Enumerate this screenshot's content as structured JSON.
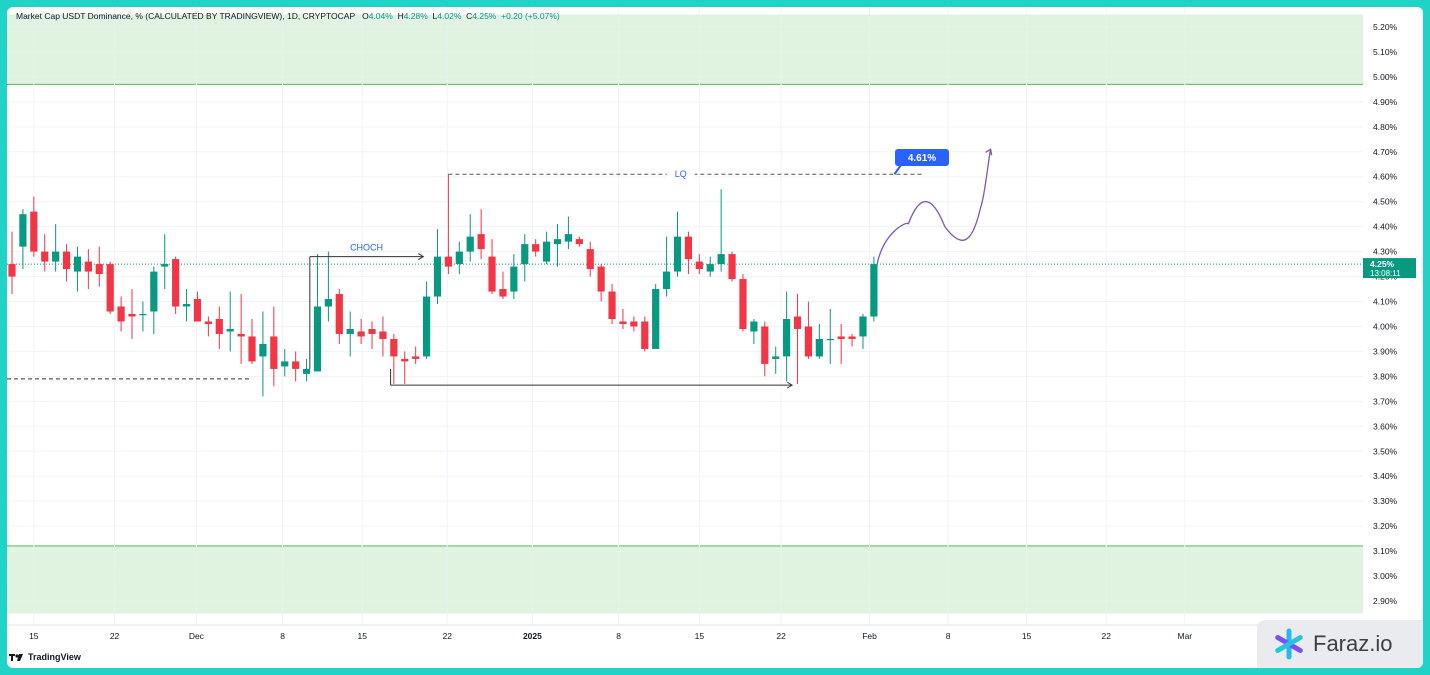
{
  "header": {
    "title": "Market Cap USDT Dominance, % (CALCULATED BY TRADINGVIEW), 1D, CRYPTOCAP",
    "o_label": "O",
    "o_value": "4.04%",
    "h_label": "H",
    "h_value": "4.28%",
    "l_label": "L",
    "l_value": "4.02%",
    "c_label": "C",
    "c_value": "4.25%",
    "change": "+0.20 (+5.07%)"
  },
  "branding": {
    "tradingview": "TradingView",
    "watermark": "Faraz.io"
  },
  "colors": {
    "up": "#089981",
    "down": "#f23645",
    "zone": "#dff3e0",
    "zone_line": "#4caf50",
    "accent": "#2962ff",
    "frame": "#1fd3c6"
  },
  "chart_data": {
    "type": "candlestick",
    "ylim": [
      2.85,
      5.25
    ],
    "y_ticks": [
      "5.20%",
      "5.10%",
      "5.00%",
      "4.90%",
      "4.80%",
      "4.70%",
      "4.60%",
      "4.50%",
      "4.40%",
      "4.30%",
      "4.20%",
      "4.10%",
      "4.00%",
      "3.90%",
      "3.80%",
      "3.70%",
      "3.60%",
      "3.50%",
      "3.40%",
      "3.30%",
      "3.20%",
      "3.10%",
      "3.00%",
      "2.90%"
    ],
    "x_ticks": [
      "15",
      "22",
      "Dec",
      "8",
      "15",
      "22",
      "2025",
      "8",
      "15",
      "22",
      "Feb",
      "8",
      "15",
      "22",
      "Mar"
    ],
    "last_price": "4.25%",
    "countdown": "13:08:11",
    "zones": [
      {
        "name": "upper-zone",
        "from": 4.97,
        "to": 5.25
      },
      {
        "name": "lower-zone",
        "from": 2.85,
        "to": 3.12
      }
    ],
    "annotations": {
      "choch_label": "CHOCH",
      "lq_label": "LQ",
      "target_label": "4.61%",
      "choch_level": 4.28,
      "lq_level": 4.61,
      "range_low": 3.765,
      "left_low": 3.79
    },
    "candles": [
      {
        "o": 4.25,
        "h": 4.38,
        "l": 4.13,
        "c": 4.2
      },
      {
        "o": 4.32,
        "h": 4.47,
        "l": 4.23,
        "c": 4.45
      },
      {
        "o": 4.46,
        "h": 4.52,
        "l": 4.28,
        "c": 4.3
      },
      {
        "o": 4.3,
        "h": 4.37,
        "l": 4.22,
        "c": 4.26
      },
      {
        "o": 4.26,
        "h": 4.41,
        "l": 4.22,
        "c": 4.3
      },
      {
        "o": 4.3,
        "h": 4.33,
        "l": 4.18,
        "c": 4.23
      },
      {
        "o": 4.22,
        "h": 4.32,
        "l": 4.14,
        "c": 4.28
      },
      {
        "o": 4.26,
        "h": 4.31,
        "l": 4.15,
        "c": 4.22
      },
      {
        "o": 4.25,
        "h": 4.32,
        "l": 4.16,
        "c": 4.21
      },
      {
        "o": 4.25,
        "h": 4.26,
        "l": 4.05,
        "c": 4.06
      },
      {
        "o": 4.08,
        "h": 4.12,
        "l": 3.98,
        "c": 4.02
      },
      {
        "o": 4.05,
        "h": 4.15,
        "l": 3.95,
        "c": 4.04
      },
      {
        "o": 4.05,
        "h": 4.1,
        "l": 3.98,
        "c": 4.05
      },
      {
        "o": 4.06,
        "h": 4.24,
        "l": 3.97,
        "c": 4.22
      },
      {
        "o": 4.24,
        "h": 4.37,
        "l": 4.15,
        "c": 4.25
      },
      {
        "o": 4.27,
        "h": 4.28,
        "l": 4.05,
        "c": 4.08
      },
      {
        "o": 4.08,
        "h": 4.15,
        "l": 4.02,
        "c": 4.09
      },
      {
        "o": 4.11,
        "h": 4.14,
        "l": 4.02,
        "c": 4.02
      },
      {
        "o": 4.02,
        "h": 4.04,
        "l": 3.96,
        "c": 4.01
      },
      {
        "o": 4.03,
        "h": 4.08,
        "l": 3.91,
        "c": 3.97
      },
      {
        "o": 3.98,
        "h": 4.14,
        "l": 3.9,
        "c": 3.99
      },
      {
        "o": 3.97,
        "h": 4.13,
        "l": 3.85,
        "c": 3.96
      },
      {
        "o": 3.96,
        "h": 4.03,
        "l": 3.85,
        "c": 3.86
      },
      {
        "o": 3.88,
        "h": 4.06,
        "l": 3.72,
        "c": 3.93
      },
      {
        "o": 3.96,
        "h": 4.08,
        "l": 3.76,
        "c": 3.83
      },
      {
        "o": 3.84,
        "h": 3.91,
        "l": 3.8,
        "c": 3.86
      },
      {
        "o": 3.86,
        "h": 3.9,
        "l": 3.78,
        "c": 3.83
      },
      {
        "o": 3.81,
        "h": 3.87,
        "l": 3.78,
        "c": 3.83
      },
      {
        "o": 3.82,
        "h": 4.29,
        "l": 3.82,
        "c": 4.08
      },
      {
        "o": 4.08,
        "h": 4.3,
        "l": 4.02,
        "c": 4.11
      },
      {
        "o": 4.13,
        "h": 4.15,
        "l": 3.93,
        "c": 3.97
      },
      {
        "o": 3.97,
        "h": 4.06,
        "l": 3.88,
        "c": 3.99
      },
      {
        "o": 3.98,
        "h": 4.03,
        "l": 3.93,
        "c": 3.96
      },
      {
        "o": 3.99,
        "h": 4.02,
        "l": 3.91,
        "c": 3.97
      },
      {
        "o": 3.98,
        "h": 4.04,
        "l": 3.88,
        "c": 3.95
      },
      {
        "o": 3.95,
        "h": 3.97,
        "l": 3.77,
        "c": 3.88
      },
      {
        "o": 3.87,
        "h": 3.9,
        "l": 3.77,
        "c": 3.86
      },
      {
        "o": 3.88,
        "h": 3.92,
        "l": 3.85,
        "c": 3.87
      },
      {
        "o": 3.88,
        "h": 4.18,
        "l": 3.87,
        "c": 4.12
      },
      {
        "o": 4.12,
        "h": 4.39,
        "l": 4.09,
        "c": 4.28
      },
      {
        "o": 4.28,
        "h": 4.61,
        "l": 4.21,
        "c": 4.24
      },
      {
        "o": 4.25,
        "h": 4.34,
        "l": 4.21,
        "c": 4.3
      },
      {
        "o": 4.3,
        "h": 4.45,
        "l": 4.26,
        "c": 4.36
      },
      {
        "o": 4.37,
        "h": 4.47,
        "l": 4.27,
        "c": 4.31
      },
      {
        "o": 4.28,
        "h": 4.35,
        "l": 4.13,
        "c": 4.14
      },
      {
        "o": 4.15,
        "h": 4.22,
        "l": 4.11,
        "c": 4.12
      },
      {
        "o": 4.14,
        "h": 4.29,
        "l": 4.11,
        "c": 4.24
      },
      {
        "o": 4.25,
        "h": 4.37,
        "l": 4.18,
        "c": 4.33
      },
      {
        "o": 4.33,
        "h": 4.35,
        "l": 4.28,
        "c": 4.3
      },
      {
        "o": 4.26,
        "h": 4.38,
        "l": 4.25,
        "c": 4.34
      },
      {
        "o": 4.33,
        "h": 4.41,
        "l": 4.24,
        "c": 4.35
      },
      {
        "o": 4.34,
        "h": 4.44,
        "l": 4.31,
        "c": 4.37
      },
      {
        "o": 4.35,
        "h": 4.36,
        "l": 4.32,
        "c": 4.33
      },
      {
        "o": 4.31,
        "h": 4.34,
        "l": 4.2,
        "c": 4.23
      },
      {
        "o": 4.24,
        "h": 4.25,
        "l": 4.1,
        "c": 4.14
      },
      {
        "o": 4.14,
        "h": 4.17,
        "l": 4.01,
        "c": 4.03
      },
      {
        "o": 4.02,
        "h": 4.07,
        "l": 3.99,
        "c": 4.01
      },
      {
        "o": 4.02,
        "h": 4.04,
        "l": 3.98,
        "c": 4.0
      },
      {
        "o": 4.02,
        "h": 4.04,
        "l": 3.9,
        "c": 3.91
      },
      {
        "o": 3.91,
        "h": 4.17,
        "l": 3.91,
        "c": 4.15
      },
      {
        "o": 4.15,
        "h": 4.36,
        "l": 4.12,
        "c": 4.22
      },
      {
        "o": 4.22,
        "h": 4.46,
        "l": 4.2,
        "c": 4.36
      },
      {
        "o": 4.36,
        "h": 4.38,
        "l": 4.21,
        "c": 4.27
      },
      {
        "o": 4.26,
        "h": 4.29,
        "l": 4.21,
        "c": 4.23
      },
      {
        "o": 4.22,
        "h": 4.28,
        "l": 4.2,
        "c": 4.25
      },
      {
        "o": 4.25,
        "h": 4.55,
        "l": 4.22,
        "c": 4.29
      },
      {
        "o": 4.29,
        "h": 4.3,
        "l": 4.18,
        "c": 4.19
      },
      {
        "o": 4.19,
        "h": 4.21,
        "l": 3.98,
        "c": 3.99
      },
      {
        "o": 3.98,
        "h": 4.03,
        "l": 3.93,
        "c": 4.02
      },
      {
        "o": 4.0,
        "h": 4.02,
        "l": 3.8,
        "c": 3.85
      },
      {
        "o": 3.87,
        "h": 3.92,
        "l": 3.81,
        "c": 3.88
      },
      {
        "o": 3.88,
        "h": 4.14,
        "l": 3.78,
        "c": 4.03
      },
      {
        "o": 4.04,
        "h": 4.13,
        "l": 3.77,
        "c": 3.99
      },
      {
        "o": 4.0,
        "h": 4.1,
        "l": 3.87,
        "c": 3.88
      },
      {
        "o": 3.88,
        "h": 4.01,
        "l": 3.87,
        "c": 3.95
      },
      {
        "o": 3.95,
        "h": 4.07,
        "l": 3.85,
        "c": 3.95
      },
      {
        "o": 3.96,
        "h": 4.01,
        "l": 3.85,
        "c": 3.95
      },
      {
        "o": 3.96,
        "h": 3.97,
        "l": 3.92,
        "c": 3.95
      },
      {
        "o": 3.96,
        "h": 4.05,
        "l": 3.91,
        "c": 4.04
      },
      {
        "o": 4.04,
        "h": 4.28,
        "l": 4.02,
        "c": 4.25
      }
    ],
    "projection": [
      4.25,
      4.38,
      4.5,
      4.4,
      4.36,
      4.48,
      4.71
    ]
  }
}
